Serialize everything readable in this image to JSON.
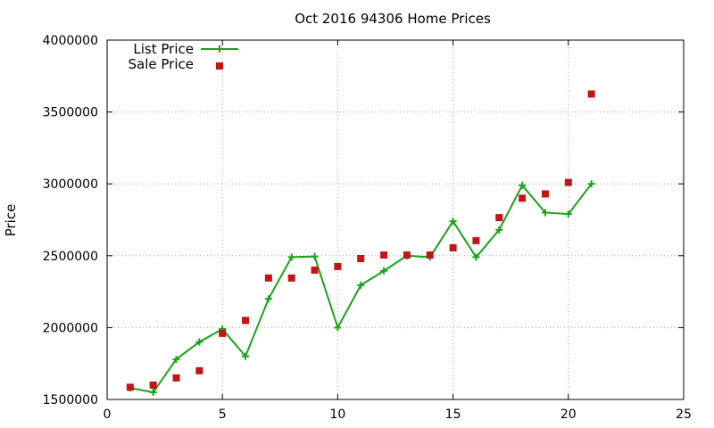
{
  "chart_data": {
    "type": "line",
    "title": "Oct 2016 94306 Home Prices",
    "xlabel": "",
    "ylabel": "Price",
    "xlim": [
      0,
      25
    ],
    "ylim": [
      1500000,
      4000000
    ],
    "x_ticks": [
      "0",
      "5",
      "10",
      "15",
      "20",
      "25"
    ],
    "y_ticks": [
      "1500000",
      "2000000",
      "2500000",
      "3000000",
      "3500000",
      "4000000"
    ],
    "grid": true,
    "legend_position": "top-left",
    "series": [
      {
        "name": "List Price",
        "style": "line-with-plus-markers",
        "color": "#1aa31a",
        "x": [
          1,
          2,
          3,
          4,
          5,
          6,
          7,
          8,
          9,
          10,
          11,
          12,
          13,
          14,
          15,
          16,
          17,
          18,
          19,
          20,
          21
        ],
        "y": [
          1580000,
          1550000,
          1780000,
          1900000,
          1990000,
          1800000,
          2200000,
          2490000,
          2495000,
          2000000,
          2295000,
          2395000,
          2500000,
          2490000,
          2740000,
          2490000,
          2680000,
          2990000,
          2800000,
          2790000,
          3000000
        ]
      },
      {
        "name": "Sale Price",
        "style": "square-markers",
        "color": "#c41414",
        "x": [
          1,
          2,
          3,
          4,
          5,
          6,
          7,
          8,
          9,
          10,
          11,
          12,
          13,
          14,
          15,
          16,
          17,
          18,
          19,
          20,
          21
        ],
        "y": [
          1585000,
          1600000,
          1650000,
          1700000,
          1960000,
          2050000,
          2345000,
          2345000,
          2400000,
          2425000,
          2480000,
          2505000,
          2505000,
          2505000,
          2555000,
          2605000,
          2765000,
          2900000,
          2930000,
          3010000,
          3625000
        ]
      }
    ]
  }
}
